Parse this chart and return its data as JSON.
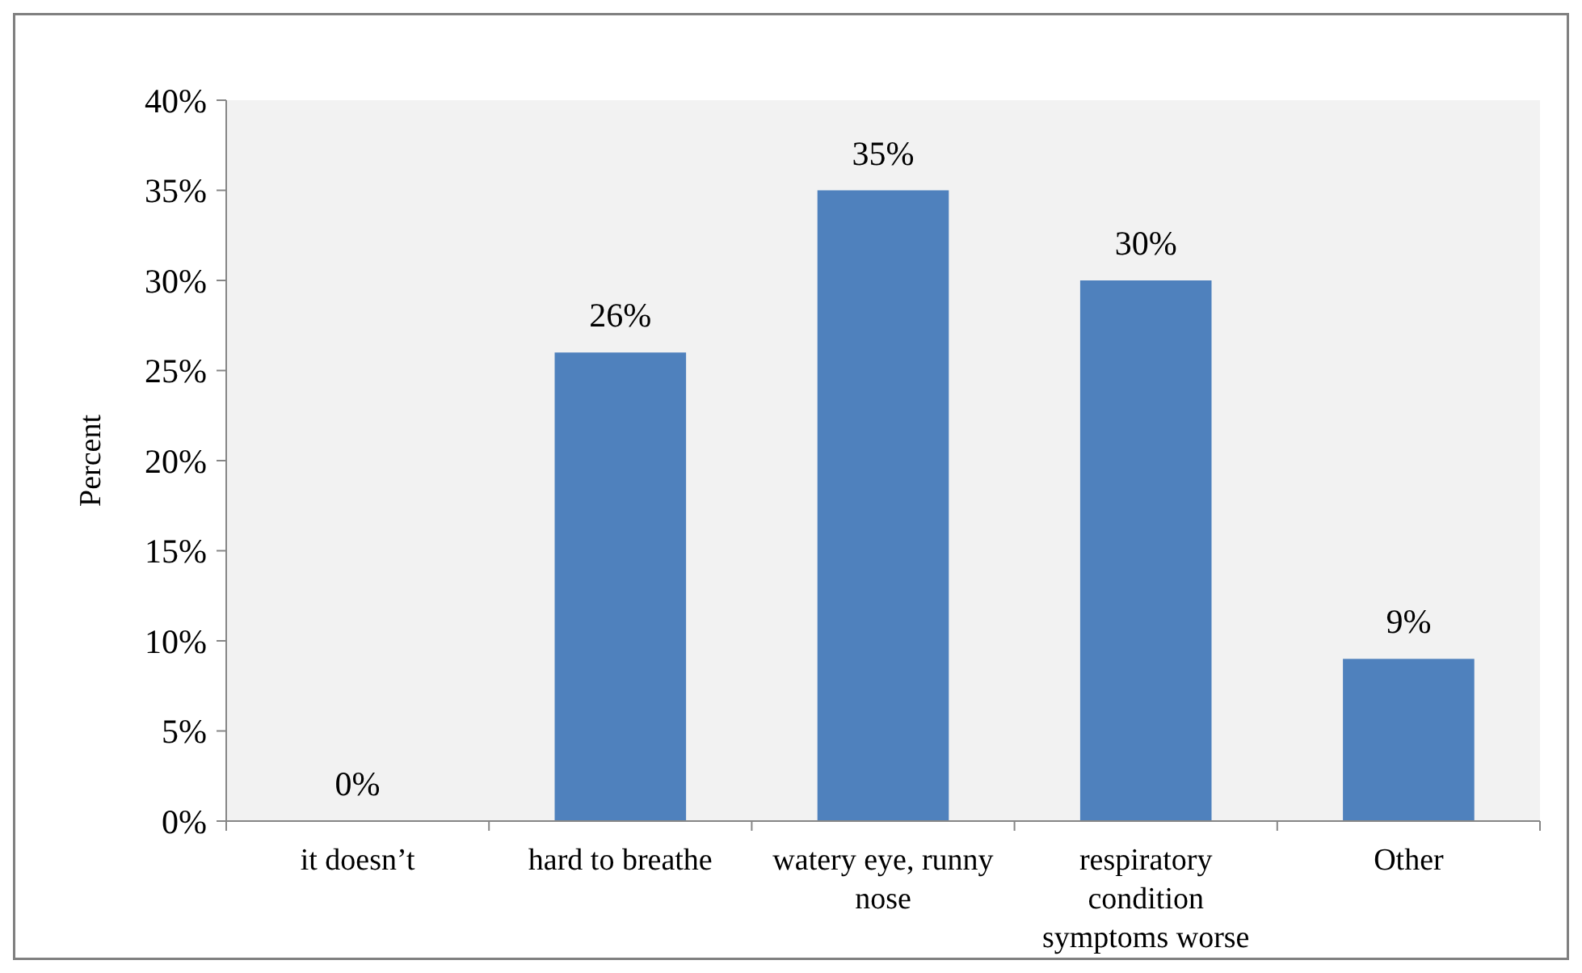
{
  "chart_data": {
    "type": "bar",
    "ylabel": "Percent",
    "categories": [
      "it doesn’t",
      "hard to breathe",
      "watery eye, runny nose",
      "respiratory condition symptoms worse",
      "Other"
    ],
    "values": [
      0,
      26,
      35,
      30,
      9
    ],
    "value_labels": [
      "0%",
      "26%",
      "35%",
      "30%",
      "9%"
    ],
    "color": "#4f81bd",
    "ylim": [
      0,
      40
    ],
    "yticks": [
      {
        "value": 0,
        "label": "0%"
      },
      {
        "value": 5,
        "label": "5%"
      },
      {
        "value": 10,
        "label": "10%"
      },
      {
        "value": 15,
        "label": "15%"
      },
      {
        "value": 20,
        "label": "20%"
      },
      {
        "value": 25,
        "label": "25%"
      },
      {
        "value": 30,
        "label": "30%"
      },
      {
        "value": 35,
        "label": "35%"
      },
      {
        "value": 40,
        "label": "40%"
      }
    ],
    "grid": false
  }
}
